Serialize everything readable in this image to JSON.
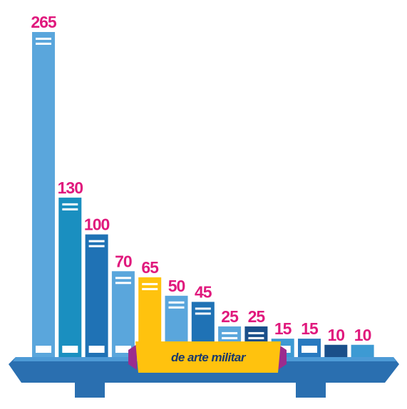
{
  "chart_data": {
    "type": "bar",
    "annotation": "de arte militar",
    "highlight_index": 4,
    "values": [
      265,
      130,
      100,
      70,
      65,
      50,
      45,
      25,
      25,
      15,
      15,
      10,
      10
    ],
    "colors": [
      "#5aa6dc",
      "#1a8fc0",
      "#1f72b5",
      "#5aa6dc",
      "#ffc20e",
      "#5aa6dc",
      "#1f72b5",
      "#5aa6dc",
      "#1a4f8a",
      "#3d9ad3",
      "#2879bf",
      "#1a4f8a",
      "#3d9ad3"
    ],
    "label_color": "#e0197d"
  }
}
